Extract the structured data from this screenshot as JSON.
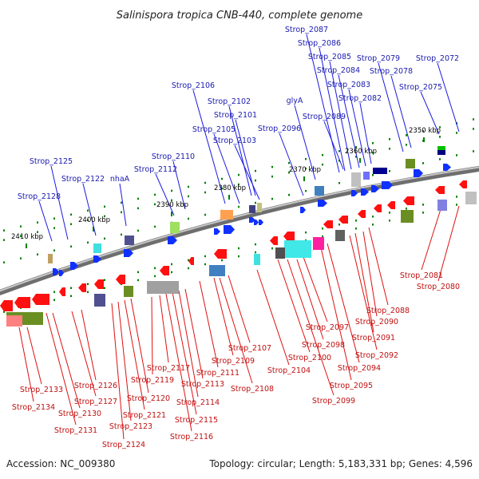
{
  "title": "Salinispora tropica CNB-440, complete genome",
  "footer": {
    "accession": "Accession: NC_009380",
    "summary": "Topology: circular; Length: 5,183,331 bp; Genes: 4,596"
  },
  "colors": {
    "forward_gene": "#1030ff",
    "reverse_gene": "#ff1010",
    "forward_label": "#1a1ab0",
    "reverse_label": "#c01010",
    "backbone": "#8a8a8a",
    "tick": "#008000"
  },
  "ticks": [
    "2350 kbp",
    "2360 kbp",
    "2370 kbp",
    "2380 kbp",
    "2390 kbp",
    "2400 kbp",
    "2410 kbp"
  ],
  "forward_labels": [
    "Strop_2072",
    "Strop_2075",
    "Strop_2078",
    "Strop_2079",
    "Strop_2082",
    "Strop_2083",
    "Strop_2084",
    "Strop_2085",
    "Strop_2086",
    "Strop_2087",
    "Strop_2089",
    "glyA",
    "Strop_2096",
    "Strop_2101",
    "Strop_2102",
    "Strop_2103",
    "Strop_2105",
    "Strop_2106",
    "Strop_2110",
    "Strop_2112",
    "nhaA",
    "Strop_2122",
    "Strop_2125",
    "Strop_2128"
  ],
  "reverse_labels": [
    "Strop_2080",
    "Strop_2081",
    "Strop_2088",
    "Strop_2090",
    "Strop_2091",
    "Strop_2092",
    "Strop_2094",
    "Strop_2095",
    "Strop_2097",
    "Strop_2098",
    "Strop_2099",
    "Strop_2100",
    "Strop_2104",
    "Strop_2107",
    "Strop_2108",
    "Strop_2109",
    "Strop_2111",
    "Strop_2113",
    "Strop_2114",
    "Strop_2115",
    "Strop_2116",
    "Strop_2117",
    "Strop_2119",
    "Strop_2120",
    "Strop_2121",
    "Strop_2123",
    "Strop_2124",
    "Strop_2126",
    "Strop_2127",
    "Strop_2130",
    "Strop_2131",
    "Strop_2133",
    "Strop_2134"
  ]
}
